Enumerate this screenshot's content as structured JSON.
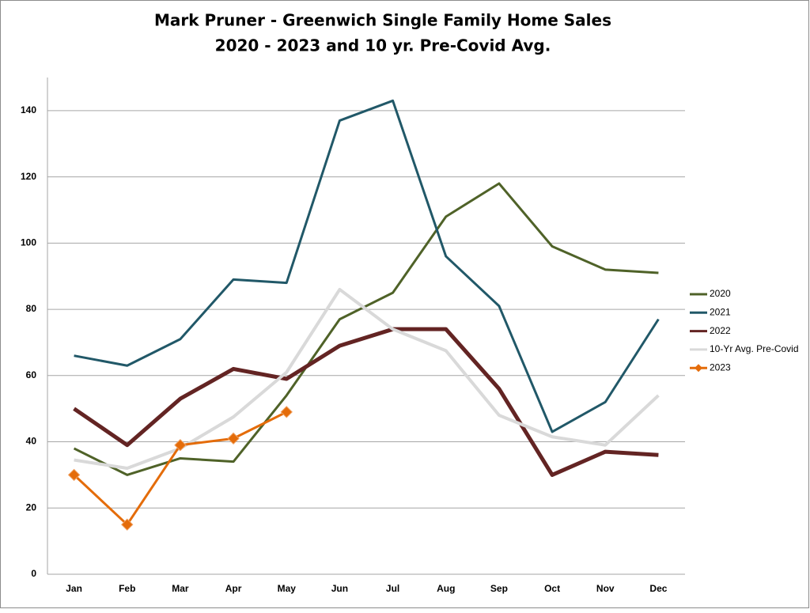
{
  "chart_data": {
    "type": "line",
    "title": "Mark Pruner - Greenwich Single Family Home Sales",
    "subtitle": "2020 - 2023 and 10 yr. Pre-Covid Avg.",
    "categories": [
      "Jan",
      "Feb",
      "Mar",
      "Apr",
      "May",
      "Jun",
      "Jul",
      "Aug",
      "Sep",
      "Oct",
      "Nov",
      "Dec"
    ],
    "series": [
      {
        "name": "2020",
        "color": "#4f6228",
        "values": [
          38,
          30,
          35,
          34,
          54,
          77,
          85,
          108,
          118,
          99,
          92,
          91
        ]
      },
      {
        "name": "2021",
        "color": "#215868",
        "values": [
          66,
          63,
          71,
          89,
          88,
          137,
          143,
          96,
          81,
          43,
          52,
          77
        ]
      },
      {
        "name": "2022",
        "color": "#632423",
        "values": [
          50,
          39,
          53,
          62,
          59,
          69,
          74,
          74,
          56,
          30,
          37,
          36
        ]
      },
      {
        "name": "10-Yr Avg. Pre-Covid",
        "color": "#d9d9d9",
        "values": [
          34.5,
          32,
          38,
          47.5,
          61,
          86,
          74,
          67.5,
          48,
          41.5,
          39,
          54
        ]
      },
      {
        "name": "2023",
        "color": "#e46c0a",
        "marker": "diamond",
        "values": [
          30,
          15,
          39,
          41,
          49,
          null,
          null,
          null,
          null,
          null,
          null,
          null
        ]
      }
    ],
    "ylim": [
      0,
      150
    ],
    "yticks": [
      0,
      20,
      40,
      60,
      80,
      100,
      120,
      140
    ],
    "grid": true,
    "legend": "right"
  }
}
